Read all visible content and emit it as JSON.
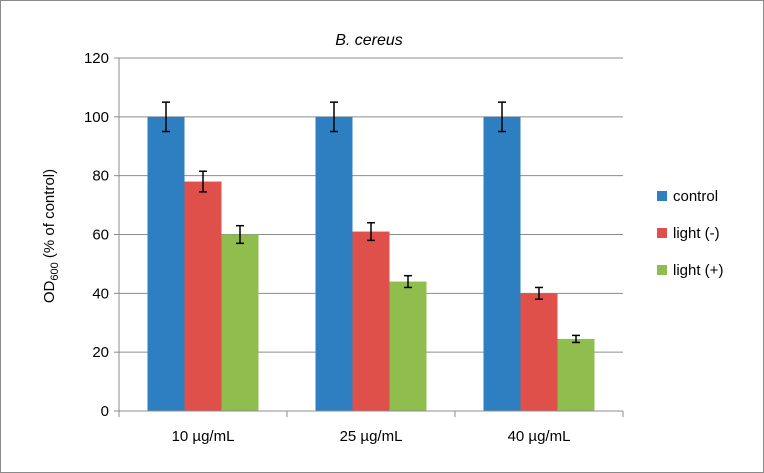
{
  "chart_data": {
    "type": "bar",
    "title": "B. cereus",
    "xlabel": "",
    "ylabel": {
      "prefix": "OD",
      "subscript": "600",
      "suffix": " (% of control)"
    },
    "categories": [
      "10 µg/mL",
      "25 µg/mL",
      "40 µg/mL"
    ],
    "ylim": [
      0,
      120
    ],
    "yticks": [
      0,
      20,
      40,
      60,
      80,
      100,
      120
    ],
    "grid": true,
    "legend_position": "right",
    "series": [
      {
        "name": "control",
        "color": "#2e7fc1",
        "values": [
          100,
          100,
          100
        ],
        "errors": [
          5,
          5,
          5
        ]
      },
      {
        "name": "light (-)",
        "color": "#e0504b",
        "values": [
          78,
          61,
          40
        ],
        "errors": [
          3.5,
          3,
          2
        ]
      },
      {
        "name": "light (+)",
        "color": "#8fbe4f",
        "values": [
          60,
          44,
          24.5
        ],
        "errors": [
          3,
          2,
          1.2
        ]
      }
    ]
  }
}
